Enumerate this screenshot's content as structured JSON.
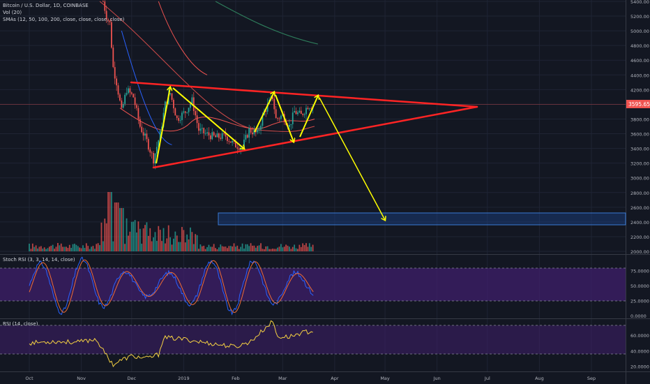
{
  "symbol": {
    "title": "Bitcoin / U.S. Dollar, 1D, COINBASE",
    "volume": "Vol (20)",
    "smas": "SMAs (12, 50, 100, 200, close, close, close, close)"
  },
  "stoch_rsi": {
    "title": "Stoch RSI (3, 3, 14, 14, close)"
  },
  "rsi": {
    "title": "RSI (14, close)"
  },
  "price_label": "3595.65",
  "price_label_color": "#ef5350",
  "colors": {
    "background": "#131722",
    "trendline": "#ff2424",
    "arrows": "#ffff00",
    "sma_red": "#ef5350",
    "sma_green": "#2e7d5b",
    "sma_blue": "#2962ff",
    "up": "#26a69a",
    "down": "#ef5350",
    "stoch_band": "#3f1f6b",
    "target_box": "#1e4ea3"
  },
  "chart_data": [
    {
      "type": "line",
      "title": "Bitcoin / U.S. Dollar, 1D, COINBASE",
      "y_axis_ticks": [
        "5400.00",
        "5200.00",
        "5000.00",
        "4800.00",
        "4600.00",
        "4400.00",
        "4200.00",
        "4000.00",
        "3800.00",
        "3600.00",
        "3400.00",
        "3200.00",
        "3000.00",
        "2800.00",
        "2600.00",
        "2400.00",
        "2200.00",
        "2000.00"
      ],
      "ylim": [
        2000,
        5400
      ],
      "last_price": 3595.65,
      "price_series": [
        {
          "x": "2018-11-14",
          "y": 5400
        },
        {
          "x": "2018-11-16",
          "y": 5200
        },
        {
          "x": "2018-11-18",
          "y": 5100
        },
        {
          "x": "2018-11-20",
          "y": 4500
        },
        {
          "x": "2018-11-22",
          "y": 4300
        },
        {
          "x": "2018-11-25",
          "y": 3900
        },
        {
          "x": "2018-11-28",
          "y": 4200
        },
        {
          "x": "2018-12-02",
          "y": 4100
        },
        {
          "x": "2018-12-06",
          "y": 3700
        },
        {
          "x": "2018-12-10",
          "y": 3500
        },
        {
          "x": "2018-12-14",
          "y": 3250
        },
        {
          "x": "2018-12-18",
          "y": 3600
        },
        {
          "x": "2018-12-21",
          "y": 4000
        },
        {
          "x": "2018-12-24",
          "y": 4150
        },
        {
          "x": "2018-12-28",
          "y": 3800
        },
        {
          "x": "2019-01-02",
          "y": 3900
        },
        {
          "x": "2019-01-06",
          "y": 4050
        },
        {
          "x": "2019-01-10",
          "y": 3650
        },
        {
          "x": "2019-01-14",
          "y": 3600
        },
        {
          "x": "2019-01-20",
          "y": 3550
        },
        {
          "x": "2019-01-26",
          "y": 3570
        },
        {
          "x": "2019-01-31",
          "y": 3450
        },
        {
          "x": "2019-02-05",
          "y": 3420
        },
        {
          "x": "2019-02-09",
          "y": 3650
        },
        {
          "x": "2019-02-14",
          "y": 3600
        },
        {
          "x": "2019-02-18",
          "y": 3900
        },
        {
          "x": "2019-02-23",
          "y": 4100
        },
        {
          "x": "2019-02-25",
          "y": 3800
        },
        {
          "x": "2019-03-01",
          "y": 3850
        },
        {
          "x": "2019-03-05",
          "y": 3700
        },
        {
          "x": "2019-03-08",
          "y": 3900
        },
        {
          "x": "2019-03-12",
          "y": 3850
        },
        {
          "x": "2019-03-16",
          "y": 3980
        },
        {
          "x": "2019-03-20",
          "y": 3990
        }
      ],
      "triangle": [
        {
          "x": "2018-12-12",
          "y": 4280
        },
        {
          "x": "2019-06-27",
          "y": 3970
        },
        {
          "x": "2018-12-13",
          "y": 3130
        }
      ],
      "target_zone": {
        "from": "2019-02-01",
        "to": "2019-09-30",
        "y_low": 2360,
        "y_high": 2520
      },
      "projection": [
        {
          "x": "2019-03-21",
          "y": 4120
        },
        {
          "x": "2019-04-29",
          "y": 2420
        }
      ],
      "x_axis_ticks": [
        "Oct",
        "Nov",
        "Dec",
        "2019",
        "Feb",
        "Mar",
        "Apr",
        "May",
        "Jun",
        "Jul",
        "Aug",
        "Sep"
      ]
    },
    {
      "type": "line",
      "title": "Stoch RSI (3, 3, 14, 14, close)",
      "y_axis_ticks": [
        "75.0000",
        "50.0000",
        "25.0000",
        "0.0000"
      ],
      "ylim": [
        0,
        100
      ],
      "band": [
        20,
        80
      ]
    },
    {
      "type": "line",
      "title": "RSI (14, close)",
      "y_axis_ticks": [
        "60.0000",
        "40.0000",
        "20.0000"
      ],
      "ylim": [
        15,
        80
      ],
      "band": [
        30,
        70
      ],
      "values": [
        {
          "x": "2018-10-01",
          "y": 50
        },
        {
          "x": "2018-10-15",
          "y": 52
        },
        {
          "x": "2018-10-30",
          "y": 51
        },
        {
          "x": "2018-11-10",
          "y": 55
        },
        {
          "x": "2018-11-14",
          "y": 40
        },
        {
          "x": "2018-11-20",
          "y": 22
        },
        {
          "x": "2018-11-25",
          "y": 28
        },
        {
          "x": "2018-12-01",
          "y": 33
        },
        {
          "x": "2018-12-10",
          "y": 30
        },
        {
          "x": "2018-12-17",
          "y": 35
        },
        {
          "x": "2018-12-20",
          "y": 57
        },
        {
          "x": "2019-01-01",
          "y": 55
        },
        {
          "x": "2019-01-15",
          "y": 50
        },
        {
          "x": "2019-02-01",
          "y": 45
        },
        {
          "x": "2019-02-10",
          "y": 52
        },
        {
          "x": "2019-02-18",
          "y": 68
        },
        {
          "x": "2019-02-23",
          "y": 78
        },
        {
          "x": "2019-02-26",
          "y": 58
        },
        {
          "x": "2019-03-05",
          "y": 58
        },
        {
          "x": "2019-03-12",
          "y": 63
        },
        {
          "x": "2019-03-20",
          "y": 66
        }
      ]
    }
  ]
}
